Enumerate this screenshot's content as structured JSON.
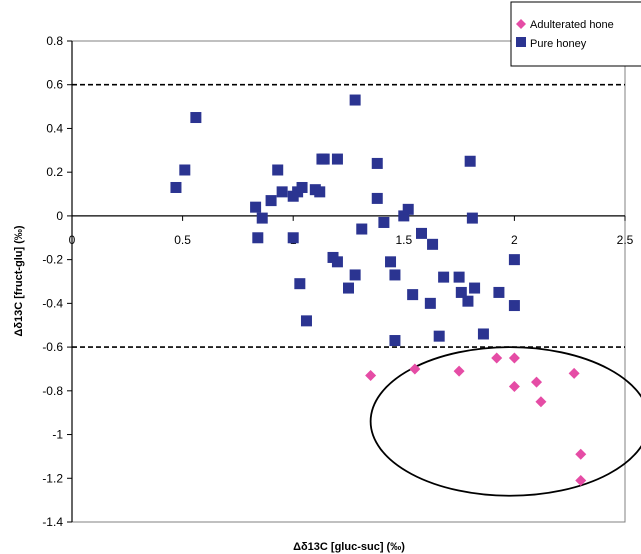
{
  "chart_data": {
    "type": "scatter",
    "xlabel": "Δδ13C [gluc-suc] (‰)",
    "ylabel": "Δδ13C [fruct-glu] (‰)",
    "xlim": [
      0,
      2.5
    ],
    "ylim": [
      -1.4,
      0.8
    ],
    "x_ticks": [
      0,
      0.5,
      1,
      1.5,
      2,
      2.5
    ],
    "x_tick_labels": [
      "0",
      "0.5",
      "1",
      "1.5",
      "2",
      "2.5"
    ],
    "y_ticks": [
      0.8,
      0.6,
      0.4,
      0.2,
      0,
      -0.2,
      -0.4,
      -0.6,
      -0.8,
      -1,
      -1.2,
      -1.4
    ],
    "y_tick_labels": [
      "0.8",
      "0.6",
      "0.4",
      "0.2",
      "0",
      "-0.2",
      "-0.4",
      "-0.6",
      "-0.8",
      "-1",
      "-1.2",
      "-1.4"
    ],
    "grid": false,
    "legend_position": "top-right",
    "reference_lines": [
      {
        "axis": "y",
        "value": 0.6,
        "style": "dashed"
      },
      {
        "axis": "y",
        "value": -0.6,
        "style": "dashed"
      }
    ],
    "annotations": [
      {
        "shape": "ellipse",
        "center": [
          1.98,
          -0.94
        ],
        "radius_x": 0.63,
        "radius_y": 0.34,
        "encloses": "Adulterated honey"
      }
    ],
    "series": [
      {
        "name": "Adulterated hone",
        "marker": "diamond",
        "color": "#e54ca5",
        "points": [
          [
            1.35,
            -0.73
          ],
          [
            1.55,
            -0.7
          ],
          [
            1.75,
            -0.71
          ],
          [
            1.92,
            -0.65
          ],
          [
            2.0,
            -0.65
          ],
          [
            2.0,
            -0.78
          ],
          [
            2.1,
            -0.76
          ],
          [
            2.12,
            -0.85
          ],
          [
            2.27,
            -0.72
          ],
          [
            2.3,
            -1.09
          ],
          [
            2.3,
            -1.21
          ]
        ]
      },
      {
        "name": "Pure honey",
        "marker": "square",
        "color": "#2b3491",
        "points": [
          [
            0.47,
            0.13
          ],
          [
            0.51,
            0.21
          ],
          [
            0.56,
            0.45
          ],
          [
            0.83,
            0.04
          ],
          [
            0.84,
            -0.1
          ],
          [
            0.86,
            -0.01
          ],
          [
            0.9,
            0.07
          ],
          [
            0.93,
            0.21
          ],
          [
            0.95,
            0.11
          ],
          [
            1.0,
            0.09
          ],
          [
            1.0,
            -0.1
          ],
          [
            1.02,
            0.11
          ],
          [
            1.03,
            -0.31
          ],
          [
            1.04,
            0.13
          ],
          [
            1.06,
            -0.48
          ],
          [
            1.1,
            0.12
          ],
          [
            1.12,
            0.11
          ],
          [
            1.13,
            0.26
          ],
          [
            1.14,
            0.26
          ],
          [
            1.2,
            0.26
          ],
          [
            1.18,
            -0.19
          ],
          [
            1.2,
            -0.21
          ],
          [
            1.25,
            -0.33
          ],
          [
            1.28,
            -0.27
          ],
          [
            1.28,
            0.53
          ],
          [
            1.31,
            -0.06
          ],
          [
            1.38,
            0.24
          ],
          [
            1.38,
            0.08
          ],
          [
            1.41,
            -0.03
          ],
          [
            1.44,
            -0.21
          ],
          [
            1.46,
            -0.27
          ],
          [
            1.46,
            -0.57
          ],
          [
            1.5,
            0.0
          ],
          [
            1.52,
            0.03
          ],
          [
            1.54,
            -0.36
          ],
          [
            1.58,
            -0.08
          ],
          [
            1.62,
            -0.4
          ],
          [
            1.63,
            -0.13
          ],
          [
            1.66,
            -0.55
          ],
          [
            1.68,
            -0.28
          ],
          [
            1.75,
            -0.28
          ],
          [
            1.76,
            -0.35
          ],
          [
            1.79,
            -0.39
          ],
          [
            1.8,
            0.25
          ],
          [
            1.81,
            -0.01
          ],
          [
            1.82,
            -0.33
          ],
          [
            1.86,
            -0.54
          ],
          [
            1.93,
            -0.35
          ],
          [
            2.0,
            -0.2
          ],
          [
            2.0,
            -0.41
          ]
        ]
      }
    ]
  }
}
